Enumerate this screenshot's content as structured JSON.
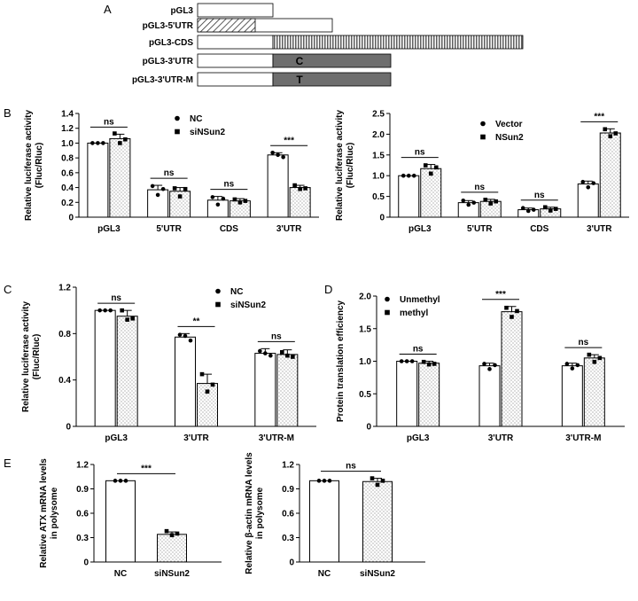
{
  "panel_letters": [
    "A",
    "B",
    "C",
    "D",
    "E"
  ],
  "constructs": [
    {
      "label": "pGL3",
      "segment": "none",
      "segment_text": ""
    },
    {
      "label": "pGL3-5'UTR",
      "segment": "5utr",
      "segment_text": ""
    },
    {
      "label": "pGL3-CDS",
      "segment": "cds",
      "segment_text": ""
    },
    {
      "label": "pGL3-3'UTR",
      "segment": "3utr",
      "segment_text": "C"
    },
    {
      "label": "pGL3-3'UTR-M",
      "segment": "3utr",
      "segment_text": "T"
    }
  ],
  "chart_data": [
    {
      "id": "B-left",
      "type": "bar",
      "ylabel": [
        "Relative luciferase activity",
        "(Fluc/Rluc)"
      ],
      "ylim": [
        0,
        1.4
      ],
      "yticks": [
        0,
        0.2,
        0.4,
        0.6,
        0.8,
        1.0,
        1.2,
        1.4
      ],
      "decimals": 1,
      "categories": [
        "pGL3",
        "5'UTR",
        "CDS",
        "3'UTR"
      ],
      "series": [
        {
          "name": "NC",
          "values": [
            1.0,
            0.37,
            0.23,
            0.84
          ],
          "errors": [
            0.0,
            0.06,
            0.05,
            0.03
          ],
          "points": [
            [
              1.0,
              1.0,
              1.0
            ],
            [
              0.42,
              0.3,
              0.38
            ],
            [
              0.27,
              0.17,
              0.25
            ],
            [
              0.87,
              0.84,
              0.81
            ]
          ]
        },
        {
          "name": "siNSun2",
          "values": [
            1.06,
            0.35,
            0.22,
            0.4
          ],
          "errors": [
            0.06,
            0.05,
            0.03,
            0.03
          ],
          "points": [
            [
              1.13,
              1.0,
              1.05
            ],
            [
              0.39,
              0.28,
              0.38
            ],
            [
              0.24,
              0.2,
              0.22
            ],
            [
              0.43,
              0.38,
              0.39
            ]
          ]
        }
      ],
      "significance": [
        "ns",
        "ns",
        "ns",
        "***"
      ],
      "legend_position": "top-center"
    },
    {
      "id": "B-right",
      "type": "bar",
      "ylabel": [
        "Relative luciferase activity",
        "(Fluc/Rluc)"
      ],
      "ylim": [
        0,
        2.5
      ],
      "yticks": [
        0,
        0.5,
        1.0,
        1.5,
        2.0,
        2.5
      ],
      "decimals": 1,
      "categories": [
        "pGL3",
        "5'UTR",
        "CDS",
        "3'UTR"
      ],
      "series": [
        {
          "name": "Vector",
          "values": [
            1.0,
            0.35,
            0.18,
            0.8
          ],
          "errors": [
            0.0,
            0.05,
            0.04,
            0.07
          ],
          "points": [
            [
              1.0,
              1.0,
              1.0
            ],
            [
              0.4,
              0.3,
              0.35
            ],
            [
              0.22,
              0.15,
              0.18
            ],
            [
              0.85,
              0.72,
              0.82
            ]
          ]
        },
        {
          "name": "NSun2",
          "values": [
            1.17,
            0.38,
            0.2,
            2.03
          ],
          "errors": [
            0.1,
            0.05,
            0.04,
            0.1
          ],
          "points": [
            [
              1.25,
              1.05,
              1.2
            ],
            [
              0.42,
              0.33,
              0.38
            ],
            [
              0.24,
              0.16,
              0.2
            ],
            [
              2.12,
              1.95,
              2.02
            ]
          ]
        }
      ],
      "significance": [
        "ns",
        "ns",
        "ns",
        "***"
      ],
      "legend_position": "top-center"
    },
    {
      "id": "C",
      "type": "bar",
      "ylabel": [
        "Relative luciferase activity",
        "(Fluc/Rluc)"
      ],
      "ylim": [
        0,
        1.2
      ],
      "yticks": [
        0,
        0.4,
        0.8,
        1.2
      ],
      "decimals": 1,
      "categories": [
        "pGL3",
        "3'UTR",
        "3'UTR-M"
      ],
      "series": [
        {
          "name": "NC",
          "values": [
            1.0,
            0.77,
            0.63
          ],
          "errors": [
            0.0,
            0.03,
            0.04
          ],
          "points": [
            [
              1.0,
              1.0,
              1.0
            ],
            [
              0.79,
              0.78,
              0.74
            ],
            [
              0.65,
              0.63,
              0.61
            ]
          ]
        },
        {
          "name": "siNSun2",
          "values": [
            0.95,
            0.37,
            0.62
          ],
          "errors": [
            0.05,
            0.08,
            0.04
          ],
          "points": [
            [
              1.0,
              0.92,
              0.93
            ],
            [
              0.45,
              0.3,
              0.36
            ],
            [
              0.64,
              0.61,
              0.6
            ]
          ]
        }
      ],
      "significance": [
        "ns",
        "**",
        "ns"
      ],
      "legend_position": "top-right"
    },
    {
      "id": "D",
      "type": "bar",
      "ylabel": [
        "Protein translation efficiency"
      ],
      "ylim": [
        0,
        2.0
      ],
      "yticks": [
        0,
        0.5,
        1.0,
        1.5,
        2.0
      ],
      "decimals": 1,
      "categories": [
        "pGL3",
        "3'UTR",
        "3'UTR-M"
      ],
      "series": [
        {
          "name": "Unmethyl",
          "values": [
            1.0,
            0.93,
            0.93
          ],
          "errors": [
            0.0,
            0.04,
            0.04
          ],
          "points": [
            [
              1.0,
              1.0,
              1.0
            ],
            [
              0.96,
              0.88,
              0.94
            ],
            [
              0.96,
              0.89,
              0.94
            ]
          ]
        },
        {
          "name": "methyl",
          "values": [
            0.97,
            1.76,
            1.05
          ],
          "errors": [
            0.03,
            0.08,
            0.05
          ],
          "points": [
            [
              0.99,
              0.95,
              0.96
            ],
            [
              1.82,
              1.68,
              1.77
            ],
            [
              1.1,
              0.99,
              1.05
            ]
          ]
        }
      ],
      "significance": [
        "ns",
        "***",
        "ns"
      ],
      "legend_position": "top-left"
    },
    {
      "id": "E-left",
      "type": "bar",
      "ylabel": [
        "Relative ATX mRNA levels",
        "in polysome"
      ],
      "ylim": [
        0,
        1.2
      ],
      "yticks": [
        0,
        0.3,
        0.6,
        0.9,
        1.2
      ],
      "decimals": 1,
      "categories": [
        "NC",
        "siNSun2"
      ],
      "series": [
        {
          "name": "",
          "values": [
            1.0,
            0.34
          ],
          "errors": [
            0.0,
            0.03
          ],
          "points": [
            [
              1.0,
              1.0,
              1.0
            ],
            [
              0.38,
              0.33,
              0.35
            ]
          ]
        }
      ],
      "significance": [
        "***"
      ],
      "significance_spans": [
        [
          0,
          1
        ]
      ],
      "legend_position": "none"
    },
    {
      "id": "E-right",
      "type": "bar",
      "ylabel": [
        "Relative β-actin mRNA levels",
        "in polysome"
      ],
      "ylim": [
        0,
        1.2
      ],
      "yticks": [
        0,
        0.3,
        0.6,
        0.9,
        1.2
      ],
      "decimals": 1,
      "categories": [
        "NC",
        "siNSun2"
      ],
      "series": [
        {
          "name": "",
          "values": [
            1.0,
            0.99
          ],
          "errors": [
            0.0,
            0.04
          ],
          "points": [
            [
              1.0,
              1.0,
              1.0
            ],
            [
              1.03,
              0.95,
              1.0
            ]
          ]
        }
      ],
      "significance": [
        "ns"
      ],
      "significance_spans": [
        [
          0,
          1
        ]
      ],
      "legend_position": "none"
    }
  ]
}
